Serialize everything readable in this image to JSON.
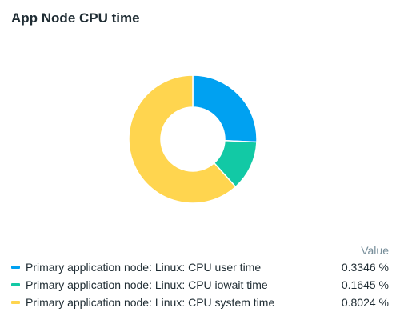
{
  "widget": {
    "title": "App Node CPU time",
    "value_header": "Value"
  },
  "colors": {
    "user": "#00a1f1",
    "iowait": "#12c9a5",
    "system": "#ffd54f"
  },
  "chart_data": {
    "type": "pie",
    "variant": "donut",
    "title": "App Node CPU time",
    "series": [
      {
        "name": "Primary application node: Linux: CPU user time",
        "value": 0.3346,
        "display": "0.3346 %",
        "color": "#00a1f1"
      },
      {
        "name": "Primary application node: Linux: CPU iowait time",
        "value": 0.1645,
        "display": "0.1645 %",
        "color": "#12c9a5"
      },
      {
        "name": "Primary application node: Linux: CPU system time",
        "value": 0.8024,
        "display": "0.8024 %",
        "color": "#ffd54f"
      }
    ],
    "legend_placement": "bottom"
  }
}
